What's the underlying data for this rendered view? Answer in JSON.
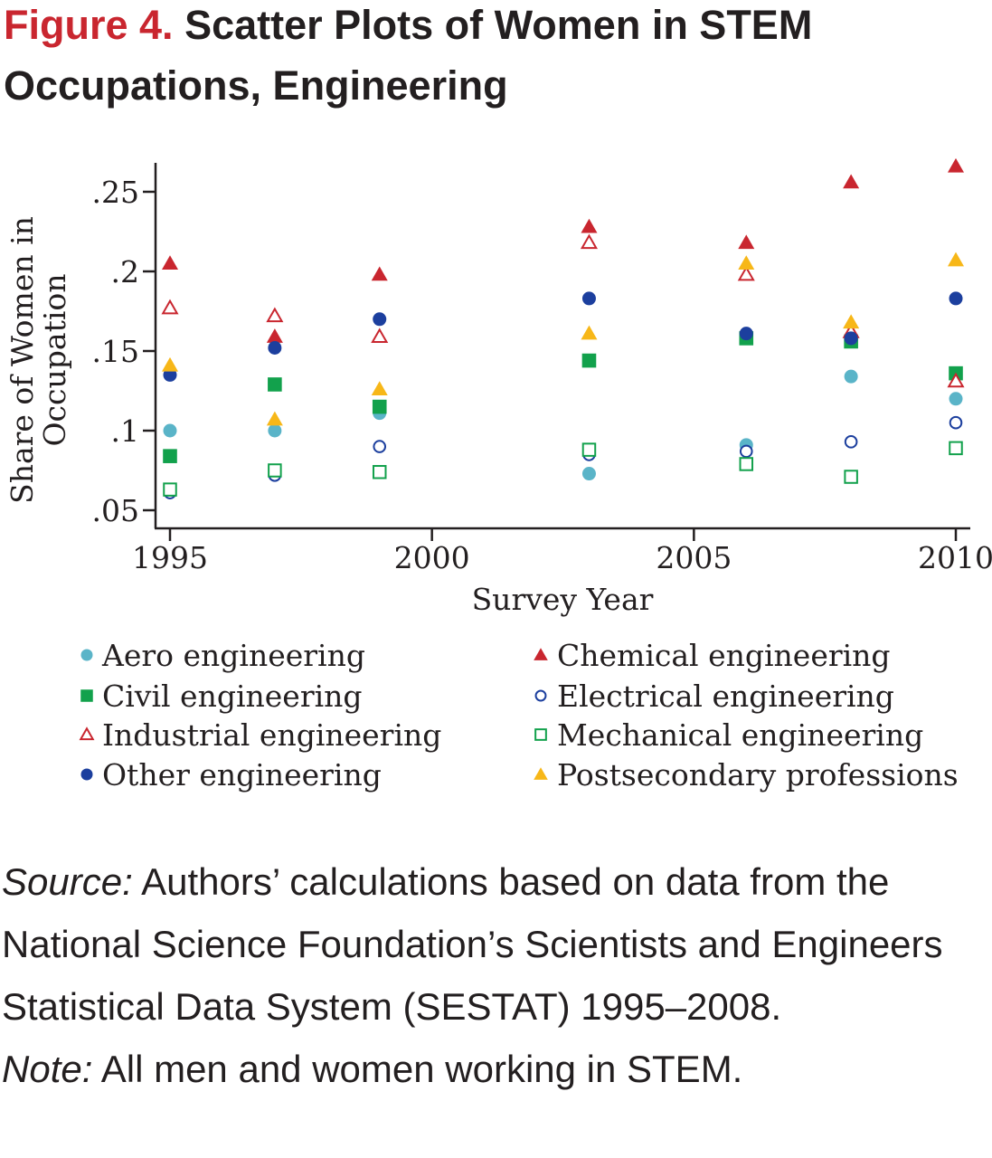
{
  "figure": {
    "label": "Figure 4.",
    "title": "Scatter Plots of Women in STEM Occupations, Engineering"
  },
  "chart_data": {
    "type": "scatter",
    "xlabel": "Survey Year",
    "ylabel_lines": [
      "Share of Women in",
      "Occupation"
    ],
    "x_ticks": [
      "1995",
      "2000",
      "2005",
      "2010"
    ],
    "x_tick_values": [
      1995,
      2000,
      2005,
      2010
    ],
    "y_ticks": [
      ".05",
      ".1",
      ".15",
      ".2",
      ".25"
    ],
    "y_tick_values": [
      0.05,
      0.1,
      0.15,
      0.2,
      0.25
    ],
    "xlim": [
      1995,
      2010.3
    ],
    "ylim": [
      0.039,
      0.267
    ],
    "grid": false,
    "legend_position": "bottom, two columns",
    "series": [
      {
        "name": "Aero engineering",
        "marker": "circle",
        "filled": true,
        "color": "#5ab4c8",
        "points": [
          [
            1995,
            0.1
          ],
          [
            1997,
            0.1
          ],
          [
            1999,
            0.111
          ],
          [
            2003,
            0.073
          ],
          [
            2006,
            0.091
          ],
          [
            2008,
            0.134
          ],
          [
            2010,
            0.12
          ]
        ]
      },
      {
        "name": "Chemical engineering",
        "marker": "triangle",
        "filled": true,
        "color": "#c9262f",
        "points": [
          [
            1995,
            0.205
          ],
          [
            1997,
            0.159
          ],
          [
            1999,
            0.198
          ],
          [
            2003,
            0.228
          ],
          [
            2006,
            0.218
          ],
          [
            2008,
            0.256
          ],
          [
            2010,
            0.266
          ]
        ]
      },
      {
        "name": "Civil engineering",
        "marker": "square",
        "filled": true,
        "color": "#12a14c",
        "points": [
          [
            1995,
            0.084
          ],
          [
            1997,
            0.129
          ],
          [
            1999,
            0.115
          ],
          [
            2003,
            0.144
          ],
          [
            2006,
            0.158
          ],
          [
            2008,
            0.156
          ],
          [
            2010,
            0.136
          ]
        ]
      },
      {
        "name": "Electrical engineering",
        "marker": "circle",
        "filled": false,
        "color": "#1c3f9e",
        "points": [
          [
            1995,
            0.061
          ],
          [
            1997,
            0.072
          ],
          [
            1999,
            0.09
          ],
          [
            2003,
            0.085
          ],
          [
            2006,
            0.087
          ],
          [
            2008,
            0.093
          ],
          [
            2010,
            0.105
          ]
        ]
      },
      {
        "name": "Industrial engineering",
        "marker": "triangle",
        "filled": false,
        "color": "#c9262f",
        "points": [
          [
            1995,
            0.177
          ],
          [
            1997,
            0.172
          ],
          [
            1999,
            0.159
          ],
          [
            2003,
            0.218
          ],
          [
            2006,
            0.198
          ],
          [
            2008,
            0.162
          ],
          [
            2010,
            0.131
          ]
        ]
      },
      {
        "name": "Mechanical engineering",
        "marker": "square",
        "filled": false,
        "color": "#12a14c",
        "points": [
          [
            1995,
            0.063
          ],
          [
            1997,
            0.075
          ],
          [
            1999,
            0.074
          ],
          [
            2003,
            0.088
          ],
          [
            2006,
            0.079
          ],
          [
            2008,
            0.071
          ],
          [
            2010,
            0.089
          ]
        ]
      },
      {
        "name": "Other engineering",
        "marker": "circle",
        "filled": true,
        "color": "#1c3f9e",
        "points": [
          [
            1995,
            0.135
          ],
          [
            1997,
            0.152
          ],
          [
            1999,
            0.17
          ],
          [
            2003,
            0.183
          ],
          [
            2006,
            0.161
          ],
          [
            2008,
            0.158
          ],
          [
            2010,
            0.183
          ]
        ]
      },
      {
        "name": "Postsecondary professions",
        "marker": "triangle",
        "filled": true,
        "color": "#f7b718",
        "points": [
          [
            1995,
            0.141
          ],
          [
            1997,
            0.107
          ],
          [
            1999,
            0.126
          ],
          [
            2003,
            0.161
          ],
          [
            2006,
            0.205
          ],
          [
            2008,
            0.168
          ],
          [
            2010,
            0.207
          ]
        ]
      }
    ],
    "legend_order": [
      0,
      1,
      2,
      3,
      4,
      5,
      6,
      7
    ]
  },
  "notes": {
    "source_label": "Source:",
    "source_text": " Authors’ calculations based on data from the National Science Foundation’s Scientists and Engineers Statistical Data System (SESTAT) 1995–2008.",
    "note_label": "Note:",
    "note_text": " All men and women working in STEM."
  }
}
